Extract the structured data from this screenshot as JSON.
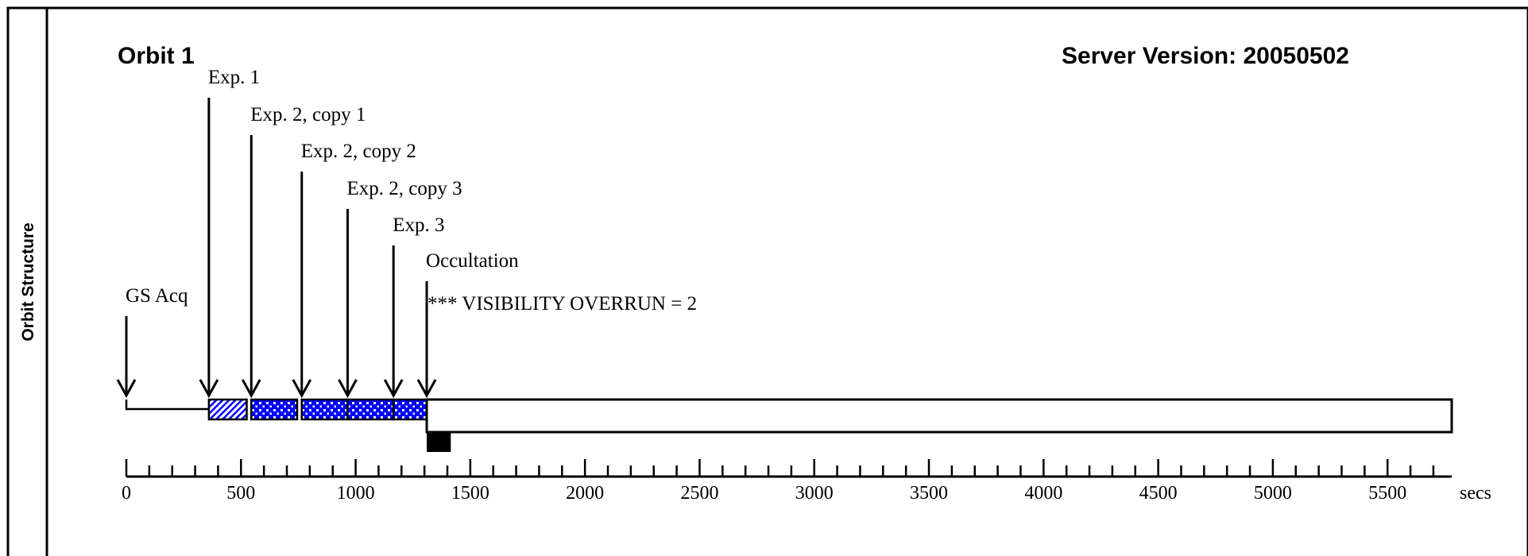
{
  "sidebar": {
    "label": "Orbit Structure"
  },
  "header": {
    "orbit_title": "Orbit 1",
    "server_version": "Server Version: 20050502"
  },
  "events": [
    {
      "label": "GS Acq",
      "time": 0
    },
    {
      "label": "Exp. 1",
      "time": 360
    },
    {
      "label": "Exp. 2, copy 1",
      "time": 545
    },
    {
      "label": "Exp. 2, copy 2",
      "time": 765
    },
    {
      "label": "Exp. 2, copy 3",
      "time": 965
    },
    {
      "label": "Exp. 3",
      "time": 1165
    },
    {
      "label": "Occultation",
      "time": 1310
    }
  ],
  "warning": "*** VISIBILITY OVERRUN = 2",
  "segments": [
    {
      "name": "guide-star-acquisition",
      "start": 0,
      "end": 360,
      "fill": "white"
    },
    {
      "name": "exposure-1",
      "start": 360,
      "end": 525,
      "fill": "hatch"
    },
    {
      "name": "exposure-2-copy-1",
      "start": 545,
      "end": 745,
      "fill": "dots"
    },
    {
      "name": "exposure-2-copy-2",
      "start": 765,
      "end": 965,
      "fill": "dots"
    },
    {
      "name": "exposure-2-copy-3",
      "start": 965,
      "end": 1165,
      "fill": "dots"
    },
    {
      "name": "exposure-3",
      "start": 1165,
      "end": 1310,
      "fill": "dots"
    }
  ],
  "visibility_window": {
    "start": 1310,
    "end": 5780
  },
  "occultation_marker": {
    "start": 1310,
    "end": 1415
  },
  "axis": {
    "min": 0,
    "max": 5780,
    "major_ticks": [
      0,
      500,
      1000,
      1500,
      2000,
      2500,
      3000,
      3500,
      4000,
      4500,
      5000,
      5500
    ],
    "minor_step": 100,
    "unit_label": "secs"
  },
  "colors": {
    "exposure_fill": "#0000ff",
    "occultation": "#000000",
    "frame": "#000000"
  }
}
